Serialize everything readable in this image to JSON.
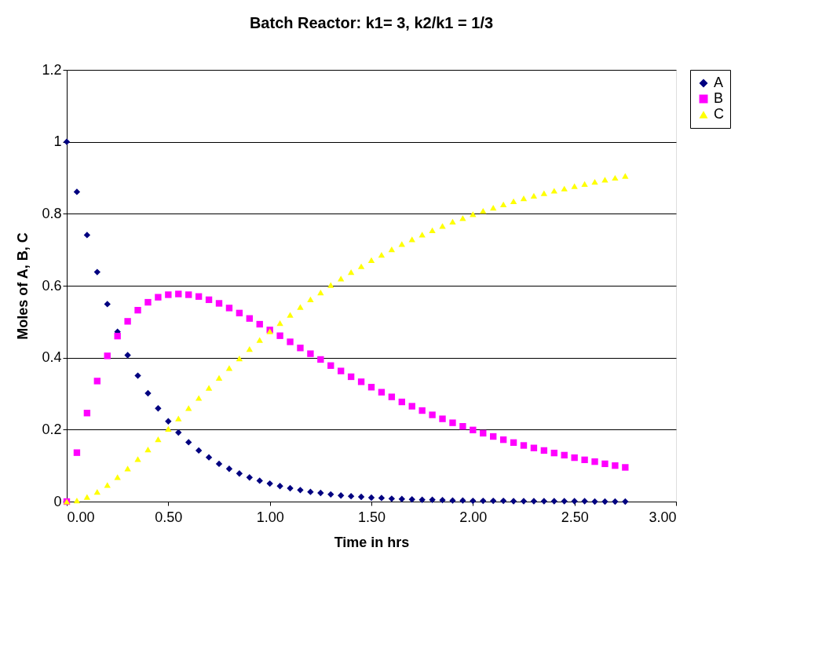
{
  "chart_data": {
    "type": "scatter",
    "title": "Batch Reactor: k1= 3, k2/k1 = 1/3",
    "xlabel": "Time in hrs",
    "ylabel": "Moles of A, B, C",
    "x": [
      0,
      0.05,
      0.1,
      0.15,
      0.2,
      0.25,
      0.3,
      0.35,
      0.4,
      0.45,
      0.5,
      0.55,
      0.6,
      0.65,
      0.7,
      0.75,
      0.8,
      0.85,
      0.9,
      0.95,
      1.0,
      1.05,
      1.1,
      1.15,
      1.2,
      1.25,
      1.3,
      1.35,
      1.4,
      1.45,
      1.5,
      1.55,
      1.6,
      1.65,
      1.7,
      1.75,
      1.8,
      1.85,
      1.9,
      1.95,
      2.0,
      2.05,
      2.1,
      2.15,
      2.2,
      2.25,
      2.3,
      2.35,
      2.4,
      2.45,
      2.5,
      2.55,
      2.6,
      2.65,
      2.7,
      2.75
    ],
    "series": [
      {
        "name": "A",
        "color": "#000080",
        "marker": "diamond",
        "values": [
          1,
          0.861,
          0.741,
          0.638,
          0.549,
          0.472,
          0.407,
          0.35,
          0.301,
          0.259,
          0.223,
          0.192,
          0.165,
          0.142,
          0.123,
          0.105,
          0.091,
          0.078,
          0.067,
          0.058,
          0.05,
          0.043,
          0.037,
          0.032,
          0.027,
          0.024,
          0.02,
          0.017,
          0.015,
          0.013,
          0.011,
          0.01,
          0.008,
          0.007,
          0.006,
          0.005,
          0.005,
          0.004,
          0.003,
          0.003,
          0.002,
          0.002,
          0.002,
          0.002,
          0.001,
          0.001,
          0.001,
          0.001,
          0.001,
          0.001,
          0.001,
          0.001,
          0,
          0,
          0,
          0
        ]
      },
      {
        "name": "B",
        "color": "#ff00ff",
        "marker": "square",
        "values": [
          0,
          0.136,
          0.246,
          0.335,
          0.405,
          0.46,
          0.501,
          0.532,
          0.554,
          0.568,
          0.575,
          0.577,
          0.575,
          0.57,
          0.561,
          0.551,
          0.538,
          0.524,
          0.509,
          0.493,
          0.477,
          0.461,
          0.444,
          0.427,
          0.411,
          0.395,
          0.378,
          0.363,
          0.347,
          0.333,
          0.318,
          0.304,
          0.291,
          0.277,
          0.265,
          0.253,
          0.241,
          0.23,
          0.219,
          0.209,
          0.199,
          0.19,
          0.181,
          0.172,
          0.164,
          0.156,
          0.149,
          0.142,
          0.135,
          0.129,
          0.122,
          0.116,
          0.111,
          0.105,
          0.1,
          0.095
        ]
      },
      {
        "name": "C",
        "color": "#ffff00",
        "marker": "triangle",
        "values": [
          0,
          0.003,
          0.013,
          0.027,
          0.046,
          0.068,
          0.092,
          0.118,
          0.145,
          0.173,
          0.202,
          0.231,
          0.26,
          0.288,
          0.316,
          0.344,
          0.371,
          0.398,
          0.424,
          0.449,
          0.473,
          0.496,
          0.519,
          0.541,
          0.562,
          0.581,
          0.602,
          0.62,
          0.638,
          0.654,
          0.671,
          0.686,
          0.701,
          0.716,
          0.729,
          0.742,
          0.754,
          0.766,
          0.778,
          0.788,
          0.799,
          0.808,
          0.817,
          0.826,
          0.835,
          0.843,
          0.85,
          0.857,
          0.864,
          0.87,
          0.877,
          0.883,
          0.889,
          0.895,
          0.9,
          0.905
        ]
      }
    ],
    "xlim": [
      0,
      3
    ],
    "xticks": [
      {
        "value": 0,
        "label": "0.00"
      },
      {
        "value": 0.5,
        "label": "0.50"
      },
      {
        "value": 1,
        "label": "1.00"
      },
      {
        "value": 1.5,
        "label": "1.50"
      },
      {
        "value": 2,
        "label": "2.00"
      },
      {
        "value": 2.5,
        "label": "2.50"
      },
      {
        "value": 3,
        "label": "3.00"
      }
    ],
    "ylim": [
      0,
      1.2
    ],
    "yticks": [
      0,
      0.2,
      0.4,
      0.6,
      0.8,
      1,
      1.2
    ],
    "grid": "y",
    "legend": "right"
  }
}
